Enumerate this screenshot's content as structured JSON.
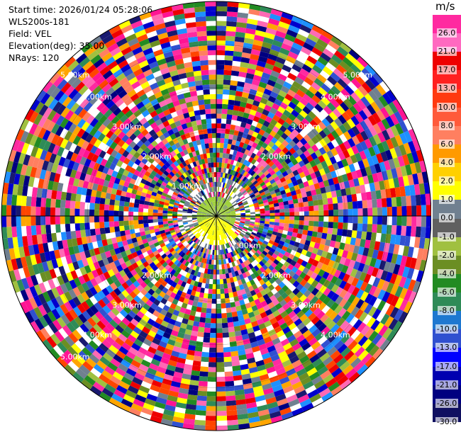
{
  "info": {
    "start_time": "Start time: 2026/01/24 05:28:06",
    "station": "WLS200s-181",
    "field": "Field: VEL",
    "elevation": "Elevation(deg): 35.00",
    "nrays": "NRays: 120"
  },
  "colorbar": {
    "unit": "m/s",
    "ticks": [
      "26.0",
      "21.0",
      "17.0",
      "13.0",
      "10.0",
      "8.0",
      "6.0",
      "4.0",
      "2.0",
      "1.0",
      "0.0",
      "-1.0",
      "-2.0",
      "-4.0",
      "-6.0",
      "-8.0",
      "-10.0",
      "-13.0",
      "-17.0",
      "-21.0",
      "-26.0",
      "-30.0"
    ],
    "colors": [
      "#ff2aa0",
      "#ff69c0",
      "#ee0000",
      "#ff2020",
      "#ff3a10",
      "#ff5a3a",
      "#ff7f60",
      "#ff9a00",
      "#ffd000",
      "#ffff00",
      "#708090",
      "#606060",
      "#a0c040",
      "#6b8e23",
      "#228b22",
      "#2e8b57",
      "#1e78d0",
      "#3050d0",
      "#0000ff",
      "#0000b0",
      "#000080",
      "#101060"
    ]
  },
  "range_rings": [
    "1.00km",
    "2.00km",
    "3.00km",
    "4.00km",
    "5.00km"
  ],
  "range_labels": [
    {
      "text": "1.00km",
      "side": "upper-left"
    },
    {
      "text": "1.00km",
      "side": "lower-right"
    },
    {
      "text": "2.00km",
      "side": "upper-left"
    },
    {
      "text": "2.00km",
      "side": "upper-right"
    },
    {
      "text": "2.00km",
      "side": "lower-left"
    },
    {
      "text": "2.00km",
      "side": "lower-right"
    },
    {
      "text": "3.00km",
      "side": "upper-left"
    },
    {
      "text": "3.00km",
      "side": "upper-right"
    },
    {
      "text": "3.00km",
      "side": "lower-left"
    },
    {
      "text": "3.00km",
      "side": "lower-right"
    },
    {
      "text": "4.00km",
      "side": "upper-left"
    },
    {
      "text": "4.00km",
      "side": "upper-right"
    },
    {
      "text": "4.00km",
      "side": "lower-left"
    },
    {
      "text": "4.00km",
      "side": "lower-right"
    },
    {
      "text": "5.00km",
      "side": "upper-left"
    },
    {
      "text": "5.00km",
      "side": "upper-right"
    },
    {
      "text": "5.00km",
      "side": "lower-left"
    }
  ]
}
